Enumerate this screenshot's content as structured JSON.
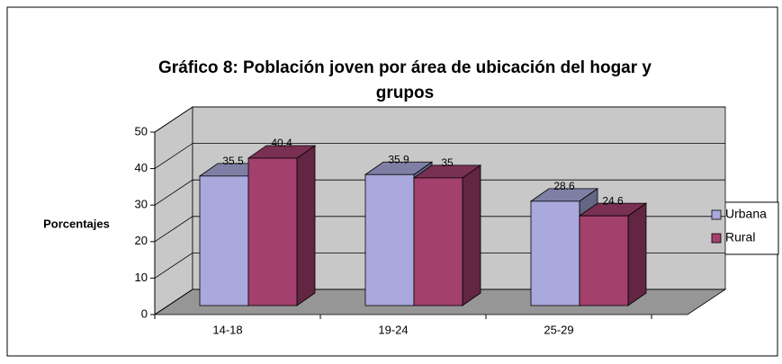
{
  "chart_data": {
    "type": "bar3d",
    "title": "Gráfico 8: Población joven por área de ubicación del hogar y grupos",
    "title_lines": [
      "Gráfico 8: Población joven por área de ubicación del hogar y",
      "grupos"
    ],
    "ylabel": "Porcentajes",
    "categories": [
      "14-18",
      "19-24",
      "25-29"
    ],
    "series": [
      {
        "name": "Urbana",
        "color": "#a9a9dd",
        "values": [
          35.5,
          35.9,
          28.6
        ]
      },
      {
        "name": "Rural",
        "color": "#a3406e",
        "values": [
          40.4,
          35,
          24.6
        ]
      }
    ],
    "ylim": [
      0,
      50
    ],
    "yticks": [
      0,
      10,
      20,
      30,
      40,
      50
    ],
    "grid": true,
    "legend": "right"
  }
}
